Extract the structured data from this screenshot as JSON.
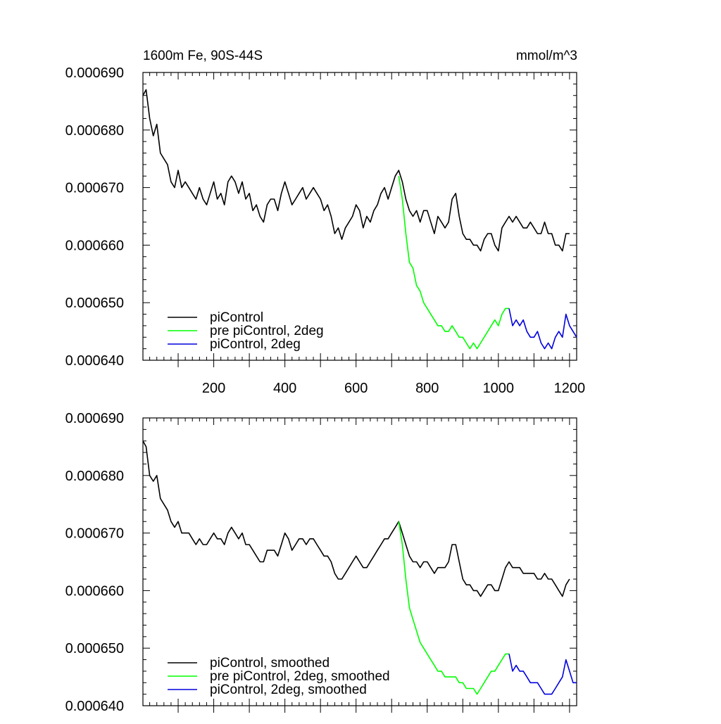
{
  "chart_data": [
    {
      "type": "line",
      "title_left": "1600m Fe, 90S-44S",
      "title_right": "mmol/m^3",
      "xlim": [
        1,
        1220
      ],
      "ylim": [
        0.00064,
        0.00069
      ],
      "yticks": [
        "0.000640",
        "0.000650",
        "0.000660",
        "0.000670",
        "0.000680",
        "0.000690"
      ],
      "xticks": [
        "200",
        "400",
        "600",
        "800",
        "1000",
        "1200"
      ],
      "show_x_tick_labels": true,
      "legend_position": "bottom-left",
      "series": [
        {
          "name": "piControl",
          "color": "#000000",
          "x": [
            1,
            10,
            20,
            30,
            40,
            50,
            60,
            70,
            80,
            90,
            100,
            110,
            120,
            130,
            140,
            150,
            160,
            170,
            180,
            190,
            200,
            210,
            220,
            230,
            240,
            250,
            260,
            270,
            280,
            290,
            300,
            310,
            320,
            330,
            340,
            350,
            360,
            370,
            380,
            390,
            400,
            410,
            420,
            430,
            440,
            450,
            460,
            470,
            480,
            490,
            500,
            510,
            520,
            530,
            540,
            550,
            560,
            570,
            580,
            590,
            600,
            610,
            620,
            630,
            640,
            650,
            660,
            670,
            680,
            690,
            700,
            710,
            720,
            730,
            740,
            750,
            760,
            770,
            780,
            790,
            800,
            810,
            820,
            830,
            840,
            850,
            860,
            870,
            880,
            890,
            900,
            910,
            920,
            930,
            940,
            950,
            960,
            970,
            980,
            990,
            1000,
            1010,
            1020,
            1030,
            1040,
            1050,
            1060,
            1070,
            1080,
            1090,
            1100,
            1110,
            1120,
            1130,
            1140,
            1150,
            1160,
            1170,
            1180,
            1190,
            1200
          ],
          "y": [
            0.000686,
            0.000687,
            0.000682,
            0.000679,
            0.000681,
            0.000676,
            0.000675,
            0.000674,
            0.000671,
            0.00067,
            0.000673,
            0.00067,
            0.000671,
            0.00067,
            0.000669,
            0.000668,
            0.00067,
            0.000668,
            0.000667,
            0.000669,
            0.000671,
            0.000668,
            0.000669,
            0.000667,
            0.000671,
            0.000672,
            0.000671,
            0.000669,
            0.000671,
            0.000668,
            0.000669,
            0.000666,
            0.000667,
            0.000665,
            0.000664,
            0.000667,
            0.000668,
            0.000668,
            0.000666,
            0.000669,
            0.000671,
            0.000669,
            0.000667,
            0.000668,
            0.000669,
            0.00067,
            0.000668,
            0.000669,
            0.00067,
            0.000669,
            0.000668,
            0.000666,
            0.000667,
            0.000665,
            0.000662,
            0.000663,
            0.000661,
            0.000663,
            0.000664,
            0.000665,
            0.000667,
            0.000666,
            0.000663,
            0.000665,
            0.000664,
            0.000666,
            0.000667,
            0.000669,
            0.00067,
            0.000668,
            0.00067,
            0.000672,
            0.000673,
            0.000671,
            0.000668,
            0.000666,
            0.000665,
            0.000666,
            0.000664,
            0.000666,
            0.000666,
            0.000664,
            0.000662,
            0.000665,
            0.000664,
            0.000663,
            0.000664,
            0.000668,
            0.000669,
            0.000665,
            0.000662,
            0.000661,
            0.000661,
            0.00066,
            0.00066,
            0.000659,
            0.000661,
            0.000662,
            0.000662,
            0.00066,
            0.000659,
            0.000663,
            0.000664,
            0.000665,
            0.000664,
            0.000665,
            0.000664,
            0.000663,
            0.000663,
            0.000664,
            0.000663,
            0.000662,
            0.000662,
            0.000664,
            0.000662,
            0.000662,
            0.00066,
            0.00066,
            0.000659,
            0.000662,
            0.000662
          ]
        },
        {
          "name": "pre piControl, 2deg",
          "color": "#00ff00",
          "x": [
            720,
            730,
            740,
            750,
            760,
            770,
            780,
            790,
            800,
            810,
            820,
            830,
            840,
            850,
            860,
            870,
            880,
            890,
            900,
            910,
            920,
            930,
            940,
            950,
            960,
            970,
            980,
            990,
            1000,
            1010,
            1020,
            1030
          ],
          "y": [
            0.000672,
            0.000668,
            0.000662,
            0.000657,
            0.000656,
            0.000653,
            0.000652,
            0.00065,
            0.000649,
            0.000648,
            0.000647,
            0.000646,
            0.000646,
            0.000645,
            0.000645,
            0.000646,
            0.000645,
            0.000644,
            0.000644,
            0.000643,
            0.000642,
            0.000643,
            0.000642,
            0.000643,
            0.000644,
            0.000645,
            0.000646,
            0.000647,
            0.000646,
            0.000648,
            0.000649,
            0.000649
          ]
        },
        {
          "name": "piControl, 2deg",
          "color": "#0000dd",
          "x": [
            1030,
            1040,
            1050,
            1060,
            1070,
            1080,
            1090,
            1100,
            1110,
            1120,
            1130,
            1140,
            1150,
            1160,
            1170,
            1180,
            1190,
            1200,
            1210,
            1220
          ],
          "y": [
            0.000649,
            0.000646,
            0.000647,
            0.000646,
            0.000647,
            0.000645,
            0.000644,
            0.000644,
            0.000645,
            0.000643,
            0.000642,
            0.000643,
            0.000642,
            0.000644,
            0.000645,
            0.000644,
            0.000648,
            0.000646,
            0.000645,
            0.000644
          ]
        }
      ]
    },
    {
      "type": "line",
      "title_left": "",
      "title_right": "",
      "xlim": [
        1,
        1220
      ],
      "ylim": [
        0.00064,
        0.00069
      ],
      "yticks": [
        "0.000640",
        "0.000650",
        "0.000660",
        "0.000670",
        "0.000680",
        "0.000690"
      ],
      "xticks": [],
      "show_x_tick_labels": false,
      "legend_position": "bottom-left",
      "series": [
        {
          "name": "piControl, smoothed",
          "color": "#000000",
          "x": [
            1,
            10,
            20,
            30,
            40,
            50,
            60,
            70,
            80,
            90,
            100,
            110,
            120,
            130,
            140,
            150,
            160,
            170,
            180,
            190,
            200,
            210,
            220,
            230,
            240,
            250,
            260,
            270,
            280,
            290,
            300,
            310,
            320,
            330,
            340,
            350,
            360,
            370,
            380,
            390,
            400,
            410,
            420,
            430,
            440,
            450,
            460,
            470,
            480,
            490,
            500,
            510,
            520,
            530,
            540,
            550,
            560,
            570,
            580,
            590,
            600,
            610,
            620,
            630,
            640,
            650,
            660,
            670,
            680,
            690,
            700,
            710,
            720,
            730,
            740,
            750,
            760,
            770,
            780,
            790,
            800,
            810,
            820,
            830,
            840,
            850,
            860,
            870,
            880,
            890,
            900,
            910,
            920,
            930,
            940,
            950,
            960,
            970,
            980,
            990,
            1000,
            1010,
            1020,
            1030,
            1040,
            1050,
            1060,
            1070,
            1080,
            1090,
            1100,
            1110,
            1120,
            1130,
            1140,
            1150,
            1160,
            1170,
            1180,
            1190,
            1200
          ],
          "y": [
            0.000686,
            0.000685,
            0.00068,
            0.000679,
            0.00068,
            0.000676,
            0.000675,
            0.000674,
            0.000672,
            0.000671,
            0.000672,
            0.00067,
            0.00067,
            0.00067,
            0.000669,
            0.000668,
            0.000669,
            0.000668,
            0.000668,
            0.000669,
            0.00067,
            0.000669,
            0.000669,
            0.000668,
            0.00067,
            0.000671,
            0.00067,
            0.000669,
            0.00067,
            0.000668,
            0.000668,
            0.000667,
            0.000666,
            0.000665,
            0.000665,
            0.000667,
            0.000667,
            0.000667,
            0.000666,
            0.000668,
            0.00067,
            0.000669,
            0.000667,
            0.000668,
            0.000669,
            0.000669,
            0.000668,
            0.000669,
            0.000669,
            0.000668,
            0.000667,
            0.000666,
            0.000666,
            0.000665,
            0.000663,
            0.000662,
            0.000662,
            0.000663,
            0.000664,
            0.000665,
            0.000666,
            0.000665,
            0.000664,
            0.000664,
            0.000665,
            0.000666,
            0.000667,
            0.000668,
            0.000669,
            0.000669,
            0.00067,
            0.000671,
            0.000672,
            0.00067,
            0.000668,
            0.000666,
            0.000665,
            0.000665,
            0.000664,
            0.000665,
            0.000665,
            0.000664,
            0.000663,
            0.000664,
            0.000664,
            0.000664,
            0.000665,
            0.000668,
            0.000668,
            0.000665,
            0.000662,
            0.000661,
            0.000661,
            0.00066,
            0.00066,
            0.000659,
            0.00066,
            0.000661,
            0.000661,
            0.00066,
            0.00066,
            0.000662,
            0.000664,
            0.000665,
            0.000664,
            0.000664,
            0.000664,
            0.000663,
            0.000663,
            0.000663,
            0.000663,
            0.000662,
            0.000662,
            0.000663,
            0.000662,
            0.000662,
            0.000661,
            0.00066,
            0.000659,
            0.000661,
            0.000662
          ]
        },
        {
          "name": "pre piControl, 2deg, smoothed",
          "color": "#00ff00",
          "x": [
            720,
            730,
            740,
            750,
            760,
            770,
            780,
            790,
            800,
            810,
            820,
            830,
            840,
            850,
            860,
            870,
            880,
            890,
            900,
            910,
            920,
            930,
            940,
            950,
            960,
            970,
            980,
            990,
            1000,
            1010,
            1020,
            1030
          ],
          "y": [
            0.000672,
            0.000668,
            0.000662,
            0.000657,
            0.000655,
            0.000653,
            0.000651,
            0.00065,
            0.000649,
            0.000648,
            0.000647,
            0.000646,
            0.000646,
            0.000645,
            0.000645,
            0.000645,
            0.000645,
            0.000644,
            0.000644,
            0.000643,
            0.000643,
            0.000643,
            0.000642,
            0.000643,
            0.000644,
            0.000645,
            0.000646,
            0.000646,
            0.000647,
            0.000648,
            0.000649,
            0.000649
          ]
        },
        {
          "name": "piControl, 2deg, smoothed",
          "color": "#0000dd",
          "x": [
            1030,
            1040,
            1050,
            1060,
            1070,
            1080,
            1090,
            1100,
            1110,
            1120,
            1130,
            1140,
            1150,
            1160,
            1170,
            1180,
            1190,
            1200,
            1210,
            1220
          ],
          "y": [
            0.000649,
            0.000646,
            0.000647,
            0.000646,
            0.000646,
            0.000645,
            0.000644,
            0.000644,
            0.000644,
            0.000643,
            0.000642,
            0.000642,
            0.000642,
            0.000643,
            0.000644,
            0.000645,
            0.000648,
            0.000646,
            0.000644,
            0.000644
          ]
        }
      ]
    }
  ]
}
